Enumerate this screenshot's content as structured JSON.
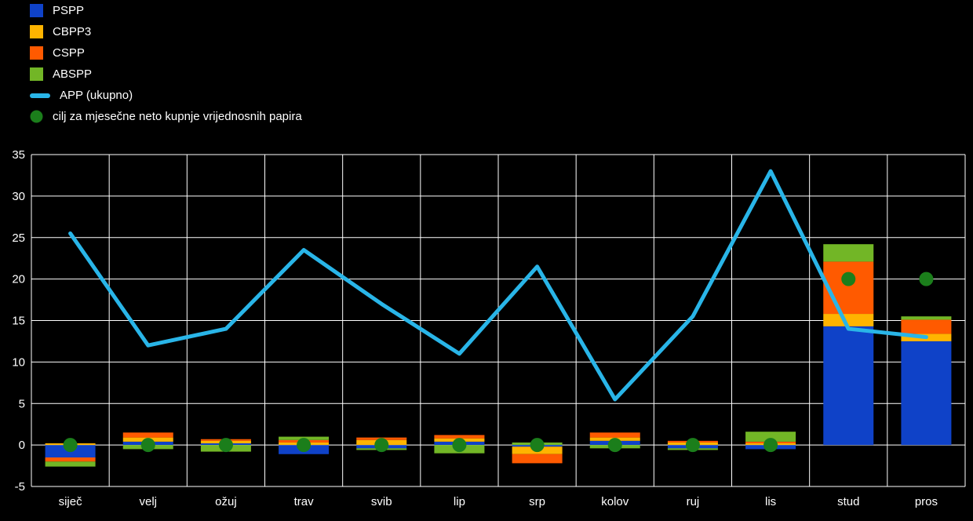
{
  "colors": {
    "pspp": "#0f42c8",
    "cbpp3": "#ffb400",
    "cspp": "#ff5a00",
    "abspp": "#72b626",
    "line": "#29b5e8",
    "target": "#1b7e1b",
    "background": "#000000",
    "grid": "#ffffff",
    "text": "#ffffff"
  },
  "legend": {
    "items": [
      {
        "key": "pspp",
        "label": "PSPP",
        "swatch": "square"
      },
      {
        "key": "cbpp3",
        "label": "CBPP3",
        "swatch": "square"
      },
      {
        "key": "cspp",
        "label": "CSPP",
        "swatch": "square"
      },
      {
        "key": "abspp",
        "label": "ABSPP",
        "swatch": "square"
      },
      {
        "key": "line",
        "label": "APP (ukupno)",
        "swatch": "line"
      },
      {
        "key": "target",
        "label": "cilj za mjesečne neto kupnje vrijednosnih papira",
        "swatch": "dot"
      }
    ]
  },
  "chart_data": {
    "type": "combo: stacked-bar + line + scatter",
    "categories": [
      "siječ",
      "velj",
      "ožuj",
      "trav",
      "svib",
      "lip",
      "srp",
      "kolov",
      "ruj",
      "lis",
      "stud",
      "pros"
    ],
    "series": [
      {
        "key": "pspp",
        "name": "PSPP",
        "values": [
          -1.5,
          0.4,
          0.2,
          -1.1,
          -0.4,
          0.4,
          -0.2,
          0.5,
          -0.4,
          -0.5,
          14.3,
          12.5
        ]
      },
      {
        "key": "cbpp3",
        "name": "CBPP3",
        "values": [
          0.2,
          0.5,
          0.3,
          0.3,
          0.6,
          0.4,
          -0.9,
          0.4,
          0.3,
          0.2,
          1.5,
          0.9
        ]
      },
      {
        "key": "cspp",
        "name": "CSPP",
        "values": [
          -0.5,
          0.6,
          0.2,
          0.3,
          0.3,
          0.4,
          -1.1,
          0.6,
          0.2,
          0.2,
          6.3,
          1.7
        ]
      },
      {
        "key": "abspp",
        "name": "ABSPP",
        "values": [
          -0.6,
          -0.5,
          -0.8,
          0.4,
          -0.2,
          -1.0,
          0.3,
          -0.4,
          -0.2,
          1.2,
          2.1,
          0.4
        ]
      }
    ],
    "line": {
      "name": "APP (ukupno)",
      "values": [
        25.5,
        12,
        14,
        23.5,
        17,
        11,
        21.5,
        5.5,
        15.5,
        33,
        14,
        13
      ]
    },
    "target": {
      "name": "cilj za mjesečne neto kupnje vrijednosnih papira",
      "values": [
        0,
        0,
        0,
        0,
        0,
        0,
        0,
        0,
        0,
        0,
        20,
        20
      ]
    },
    "title": "",
    "xlabel": "",
    "ylabel": "",
    "ylim": [
      -5,
      35
    ],
    "ytick_step": 5,
    "grid": true,
    "legend_position": "top-left"
  }
}
